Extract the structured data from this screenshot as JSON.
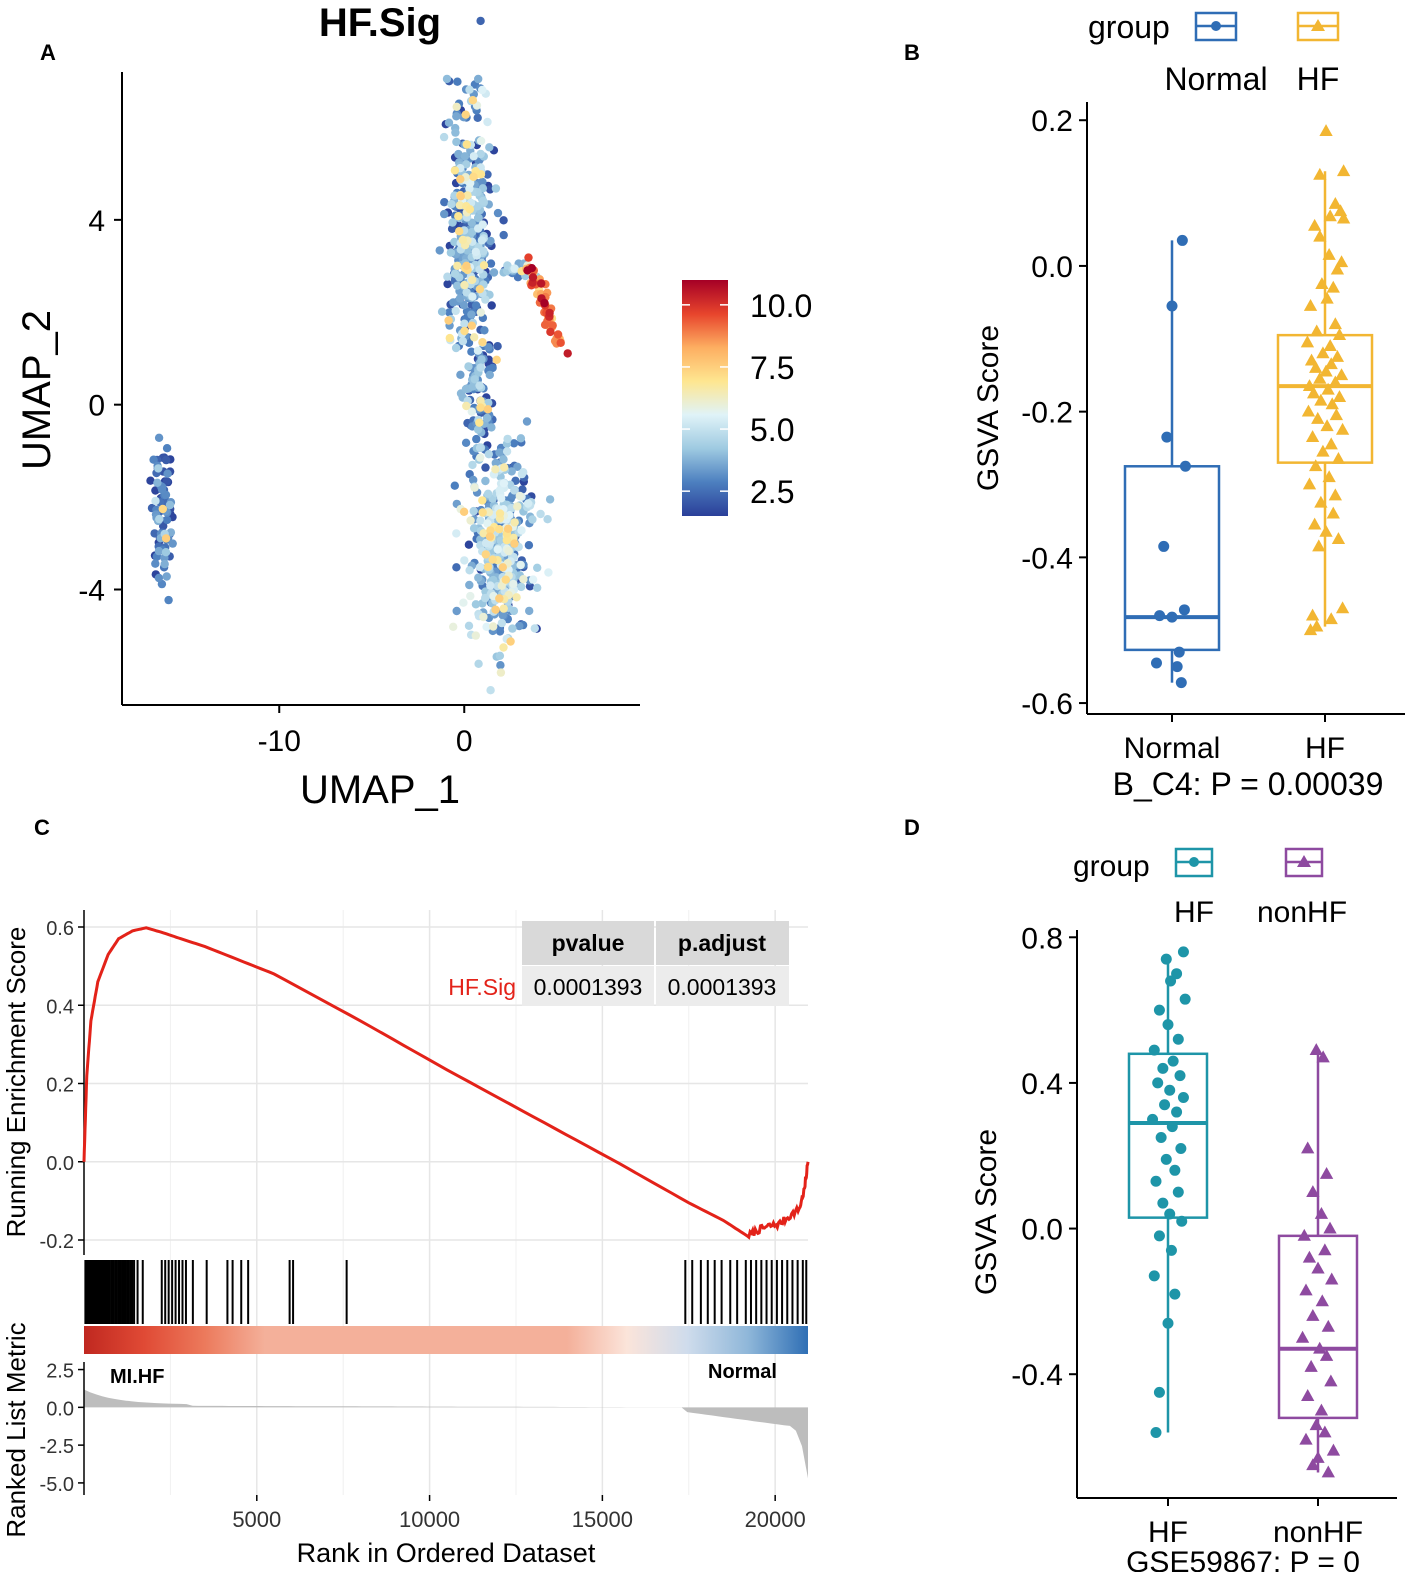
{
  "panel_labels": [
    "A",
    "B",
    "C",
    "D"
  ],
  "colors": {
    "normal_blue": "#2f6db5",
    "hf_yellow": "#f2b632",
    "hf_teal": "#1e95a8",
    "nonhf_purple": "#8e4aa0",
    "curve_red": "#e32219",
    "axis": "#000000",
    "grid": "#e6e6e6",
    "table_header": "#d9d9d9",
    "table_cell": "#ececec",
    "metric_fill": "#bdbdbd"
  },
  "chart_data": [
    {
      "id": "A",
      "type": "scatter",
      "title": "HF.Sig",
      "xlabel": "UMAP_1",
      "ylabel": "UMAP_2",
      "xlim": [
        -18.5,
        9.5
      ],
      "ylim": [
        -6.5,
        7.2
      ],
      "xticks": [
        -10,
        0
      ],
      "xtick_labels": [
        "-10",
        "0"
      ],
      "yticks": [
        -4,
        0,
        4
      ],
      "ytick_labels": [
        "-4",
        "0",
        "4"
      ],
      "colorbar": {
        "min": 1.5,
        "max": 11,
        "ticks": [
          10.0,
          7.5,
          5.0,
          2.5
        ],
        "tick_labels": [
          "10.0",
          "7.5",
          "5.0",
          "2.5"
        ],
        "stops": [
          "#2b3f99",
          "#4c7fbf",
          "#9ecae1",
          "#e0f3f8",
          "#fee690",
          "#fdae61",
          "#e7442c",
          "#a50026"
        ]
      },
      "clusters": [
        {
          "name": "left",
          "cx": -16.3,
          "cy": -2.3,
          "sx": 0.35,
          "sy": 0.9,
          "n": 90,
          "mean": 2.6,
          "sd": 1.0
        },
        {
          "name": "main-upper",
          "cx": 0.3,
          "cy": 3.6,
          "sx": 0.75,
          "sy": 1.9,
          "n": 430,
          "mean": 3.4,
          "sd": 1.3
        },
        {
          "name": "main-stem",
          "cx": 0.9,
          "cy": 0.0,
          "sx": 0.45,
          "sy": 0.9,
          "n": 90,
          "mean": 3.3,
          "sd": 1.2
        },
        {
          "name": "main-lower",
          "cx": 1.9,
          "cy": -3.1,
          "sx": 1.05,
          "sy": 1.2,
          "n": 440,
          "mean": 4.0,
          "sd": 1.3
        },
        {
          "name": "arm",
          "cx": 2.8,
          "cy": 2.9,
          "sx": 0.6,
          "sy": 0.12,
          "n": 25,
          "mean": 3.8,
          "sd": 1.2
        }
      ],
      "streak": {
        "from": [
          3.5,
          3.05
        ],
        "to": [
          5.2,
          1.25
        ],
        "n": 60,
        "mean": 8.9,
        "sd": 1.0
      }
    },
    {
      "id": "B",
      "type": "box",
      "legend_title": "group",
      "legend_items": [
        "Normal",
        "HF"
      ],
      "categories": [
        "Normal",
        "HF"
      ],
      "ylabel": "GSVA Score",
      "xlabel": "B_C4: P = 0.00039",
      "ylim": [
        -0.615,
        0.225
      ],
      "yticks": [
        0.2,
        0.0,
        -0.2,
        -0.4,
        -0.6
      ],
      "ytick_labels": [
        "0.2",
        "0.0",
        "-0.2",
        "-0.4",
        "-0.6"
      ],
      "series": [
        {
          "name": "Normal",
          "marker": "circle",
          "color": "#2f6db5",
          "box": {
            "whisker_low": -0.572,
            "q1": -0.527,
            "median": -0.482,
            "q3": -0.275,
            "whisker_high": 0.035
          },
          "points": [
            [
              0.1,
              0.035
            ],
            [
              0.0,
              -0.055
            ],
            [
              -0.05,
              -0.235
            ],
            [
              0.13,
              -0.275
            ],
            [
              -0.08,
              -0.385
            ],
            [
              -0.12,
              -0.48
            ],
            [
              0.12,
              -0.472
            ],
            [
              0.0,
              -0.482
            ],
            [
              0.07,
              -0.53
            ],
            [
              -0.15,
              -0.545
            ],
            [
              0.05,
              -0.55
            ],
            [
              0.09,
              -0.572
            ]
          ]
        },
        {
          "name": "HF",
          "marker": "triangle",
          "color": "#f2b632",
          "box": {
            "whisker_low": -0.495,
            "q1": -0.27,
            "median": -0.165,
            "q3": -0.095,
            "whisker_high": 0.13
          },
          "points": [
            [
              0.01,
              0.185
            ],
            [
              0.18,
              0.13
            ],
            [
              -0.05,
              0.125
            ],
            [
              0.1,
              0.085
            ],
            [
              0.15,
              0.075
            ],
            [
              0.05,
              0.068
            ],
            [
              0.18,
              0.065
            ],
            [
              -0.1,
              0.055
            ],
            [
              -0.05,
              0.04
            ],
            [
              0.04,
              0.015
            ],
            [
              0.16,
              0.005
            ],
            [
              0.12,
              -0.005
            ],
            [
              -0.03,
              -0.025
            ],
            [
              0.08,
              -0.03
            ],
            [
              0.02,
              -0.045
            ],
            [
              -0.14,
              -0.055
            ],
            [
              0.1,
              -0.08
            ],
            [
              -0.08,
              -0.09
            ],
            [
              0.14,
              -0.095
            ],
            [
              -0.17,
              -0.105
            ],
            [
              0.05,
              -0.11
            ],
            [
              -0.02,
              -0.12
            ],
            [
              0.12,
              -0.125
            ],
            [
              -0.13,
              -0.13
            ],
            [
              0.06,
              -0.135
            ],
            [
              -0.09,
              -0.14
            ],
            [
              0.01,
              -0.145
            ],
            [
              0.16,
              -0.15
            ],
            [
              -0.05,
              -0.155
            ],
            [
              0.1,
              -0.16
            ],
            [
              -0.15,
              -0.165
            ],
            [
              0.03,
              -0.17
            ],
            [
              -0.11,
              -0.175
            ],
            [
              0.14,
              -0.18
            ],
            [
              -0.04,
              -0.185
            ],
            [
              0.07,
              -0.19
            ],
            [
              -0.16,
              -0.2
            ],
            [
              0.11,
              -0.205
            ],
            [
              -0.07,
              -0.21
            ],
            [
              0.02,
              -0.22
            ],
            [
              0.17,
              -0.225
            ],
            [
              -0.12,
              -0.235
            ],
            [
              0.06,
              -0.245
            ],
            [
              -0.02,
              -0.255
            ],
            [
              0.13,
              -0.265
            ],
            [
              -0.09,
              -0.275
            ],
            [
              0.04,
              -0.29
            ],
            [
              -0.15,
              -0.3
            ],
            [
              0.1,
              -0.315
            ],
            [
              -0.04,
              -0.325
            ],
            [
              0.08,
              -0.34
            ],
            [
              -0.1,
              -0.355
            ],
            [
              0.01,
              -0.365
            ],
            [
              0.13,
              -0.375
            ],
            [
              -0.06,
              -0.385
            ],
            [
              0.17,
              -0.47
            ],
            [
              -0.12,
              -0.48
            ],
            [
              0.06,
              -0.485
            ],
            [
              -0.08,
              -0.495
            ],
            [
              -0.14,
              -0.5
            ]
          ]
        }
      ]
    },
    {
      "id": "C",
      "type": "line",
      "ylabel": "Running Enrichment Score",
      "ylabel_bottom": "Ranked List Metric",
      "xlabel": "Rank in Ordered Dataset",
      "xlim": [
        0,
        20950
      ],
      "xticks": [
        5000,
        10000,
        15000,
        20000
      ],
      "xtick_labels": [
        "5000",
        "10000",
        "15000",
        "20000"
      ],
      "ylim": [
        -0.2,
        0.6
      ],
      "yticks": [
        0.6,
        0.4,
        0.2,
        0.0,
        -0.2
      ],
      "ytick_labels": [
        "0.6",
        "0.4",
        "0.2",
        "0.0",
        "-0.2"
      ],
      "metric_ylim": [
        -5.8,
        3.0
      ],
      "metric_yticks": [
        2.5,
        0.0,
        -2.5,
        -5.0
      ],
      "metric_ytick_labels": [
        "2.5",
        "0.0",
        "-2.5",
        "-5.0"
      ],
      "running_score": [
        [
          0,
          0.0
        ],
        [
          80,
          0.22
        ],
        [
          200,
          0.36
        ],
        [
          400,
          0.46
        ],
        [
          700,
          0.53
        ],
        [
          1000,
          0.57
        ],
        [
          1400,
          0.59
        ],
        [
          1800,
          0.598
        ],
        [
          2300,
          0.585
        ],
        [
          2800,
          0.57
        ],
        [
          3500,
          0.55
        ],
        [
          4500,
          0.515
        ],
        [
          5500,
          0.48
        ],
        [
          8000,
          0.36
        ],
        [
          10500,
          0.235
        ],
        [
          13000,
          0.115
        ],
        [
          15500,
          -0.005
        ],
        [
          17500,
          -0.105
        ],
        [
          18500,
          -0.15
        ],
        [
          19200,
          -0.19
        ],
        [
          19500,
          -0.175
        ],
        [
          19800,
          -0.165
        ],
        [
          20100,
          -0.16
        ],
        [
          20400,
          -0.14
        ],
        [
          20700,
          -0.12
        ],
        [
          20850,
          -0.07
        ],
        [
          20950,
          0.0
        ]
      ],
      "hits": [
        40,
        70,
        100,
        130,
        160,
        190,
        220,
        260,
        300,
        340,
        380,
        420,
        460,
        500,
        540,
        580,
        620,
        660,
        700,
        750,
        800,
        850,
        900,
        950,
        1000,
        1050,
        1100,
        1150,
        1200,
        1250,
        1300,
        1350,
        1400,
        1450,
        1550,
        1700,
        2250,
        2350,
        2450,
        2550,
        2650,
        2750,
        2850,
        2950,
        3150,
        3550,
        4150,
        4300,
        4550,
        4750,
        5950,
        6050,
        7600,
        17400,
        17600,
        17850,
        18050,
        18250,
        18450,
        18700,
        18900,
        19150,
        19300,
        19450,
        19600,
        19750,
        19900,
        20050,
        20200,
        20350,
        20500,
        20650,
        20800,
        20900
      ],
      "heat_stops": [
        "#c02820",
        "#e04a35",
        "#ec7a5c",
        "#f4b09a",
        "#f4b09a",
        "#f4b09a",
        "#f4b09a",
        "#f4b09a",
        "#f4b09a",
        "#fbe4da",
        "#cfdcec",
        "#8fb7d9",
        "#2f6fb5"
      ],
      "metric_labels": [
        "MI.HF",
        "Normal"
      ],
      "table": {
        "headers": [
          "pvalue",
          "p.adjust"
        ],
        "row_label": "HF.Sig",
        "values": [
          "0.0001393",
          "0.0001393"
        ]
      }
    },
    {
      "id": "D",
      "type": "box",
      "legend_title": "group",
      "legend_items": [
        "HF",
        "nonHF"
      ],
      "categories": [
        "HF",
        "nonHF"
      ],
      "ylabel": "GSVA Score",
      "xlabel": "GSE59867: P = 0",
      "ylim": [
        -0.74,
        0.82
      ],
      "yticks": [
        0.8,
        0.4,
        0.0,
        -0.4
      ],
      "ytick_labels": [
        "0.8",
        "0.4",
        "0.0",
        "-0.4"
      ],
      "series": [
        {
          "name": "HF",
          "marker": "circle",
          "color": "#1e95a8",
          "box": {
            "whisker_low": -0.56,
            "q1": 0.03,
            "median": 0.29,
            "q3": 0.48,
            "whisker_high": 0.75
          },
          "points": [
            [
              0.18,
              0.76
            ],
            [
              -0.02,
              0.74
            ],
            [
              0.1,
              0.7
            ],
            [
              0.03,
              0.68
            ],
            [
              0.2,
              0.63
            ],
            [
              -0.1,
              0.6
            ],
            [
              0.0,
              0.56
            ],
            [
              0.12,
              0.52
            ],
            [
              -0.16,
              0.49
            ],
            [
              0.06,
              0.46
            ],
            [
              -0.06,
              0.44
            ],
            [
              0.14,
              0.42
            ],
            [
              -0.12,
              0.4
            ],
            [
              0.02,
              0.38
            ],
            [
              0.18,
              0.36
            ],
            [
              -0.04,
              0.34
            ],
            [
              0.1,
              0.32
            ],
            [
              -0.18,
              0.3
            ],
            [
              0.05,
              0.28
            ],
            [
              -0.08,
              0.25
            ],
            [
              0.15,
              0.22
            ],
            [
              -0.02,
              0.19
            ],
            [
              0.08,
              0.16
            ],
            [
              -0.14,
              0.13
            ],
            [
              0.12,
              0.1
            ],
            [
              -0.06,
              0.07
            ],
            [
              0.02,
              0.04
            ],
            [
              0.16,
              0.02
            ],
            [
              -0.1,
              -0.02
            ],
            [
              0.04,
              -0.06
            ],
            [
              -0.16,
              -0.13
            ],
            [
              0.08,
              -0.18
            ],
            [
              0.0,
              -0.26
            ],
            [
              -0.1,
              -0.45
            ],
            [
              -0.14,
              -0.56
            ]
          ]
        },
        {
          "name": "nonHF",
          "marker": "triangle",
          "color": "#8e4aa0",
          "box": {
            "whisker_low": -0.67,
            "q1": -0.52,
            "median": -0.33,
            "q3": -0.02,
            "whisker_high": 0.49
          },
          "points": [
            [
              -0.02,
              0.49
            ],
            [
              0.06,
              0.47
            ],
            [
              -0.12,
              0.22
            ],
            [
              0.1,
              0.15
            ],
            [
              -0.06,
              0.1
            ],
            [
              0.04,
              0.04
            ],
            [
              0.14,
              0.0
            ],
            [
              -0.16,
              -0.02
            ],
            [
              0.08,
              -0.06
            ],
            [
              -0.1,
              -0.08
            ],
            [
              0.0,
              -0.11
            ],
            [
              0.16,
              -0.14
            ],
            [
              -0.14,
              -0.17
            ],
            [
              0.05,
              -0.2
            ],
            [
              -0.06,
              -0.24
            ],
            [
              0.12,
              -0.27
            ],
            [
              -0.18,
              -0.3
            ],
            [
              0.02,
              -0.33
            ],
            [
              0.1,
              -0.35
            ],
            [
              -0.08,
              -0.38
            ],
            [
              0.15,
              -0.42
            ],
            [
              -0.12,
              -0.46
            ],
            [
              0.04,
              -0.5
            ],
            [
              -0.02,
              -0.54
            ],
            [
              0.08,
              -0.56
            ],
            [
              -0.14,
              -0.58
            ],
            [
              0.18,
              -0.61
            ],
            [
              0.0,
              -0.63
            ],
            [
              -0.06,
              -0.65
            ],
            [
              0.12,
              -0.67
            ]
          ]
        }
      ]
    }
  ]
}
